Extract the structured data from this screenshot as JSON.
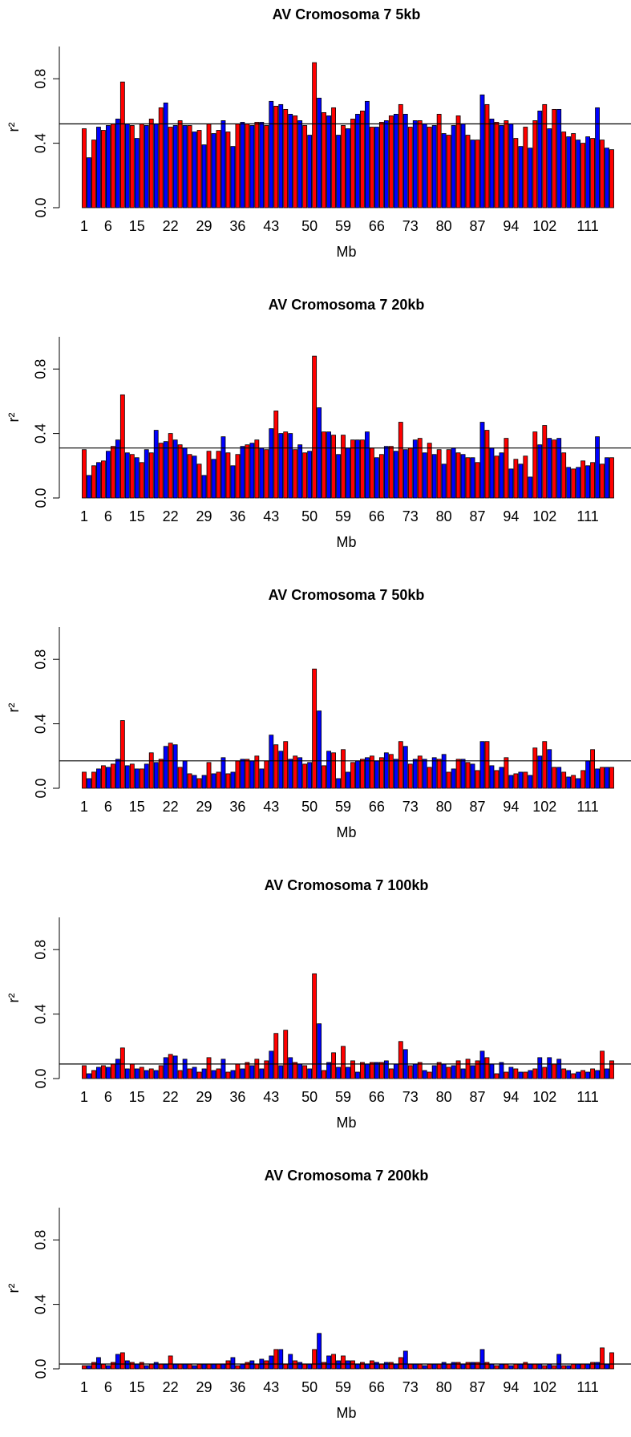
{
  "chart_data": [
    {
      "type": "bar",
      "title": "AV Cromosoma 7 5kb",
      "x_label": "Mb",
      "y_label": "r²",
      "categories": [
        1,
        null,
        null,
        null,
        null,
        6,
        null,
        null,
        null,
        null,
        null,
        15,
        null,
        null,
        null,
        null,
        null,
        null,
        22,
        null,
        null,
        null,
        null,
        null,
        null,
        29,
        null,
        null,
        null,
        null,
        null,
        null,
        36,
        null,
        null,
        null,
        null,
        null,
        null,
        43,
        null,
        null,
        null,
        null,
        null,
        null,
        null,
        50,
        null,
        null,
        null,
        null,
        null,
        null,
        59,
        null,
        null,
        null,
        null,
        null,
        null,
        66,
        null,
        null,
        null,
        null,
        null,
        null,
        73,
        null,
        null,
        null,
        null,
        null,
        null,
        80,
        null,
        null,
        null,
        null,
        null,
        null,
        87,
        null,
        null,
        null,
        null,
        null,
        null,
        94,
        null,
        null,
        null,
        null,
        null,
        null,
        102,
        null,
        null,
        null,
        null,
        null,
        null,
        null,
        null,
        111,
        null,
        null,
        null,
        null,
        null
      ],
      "values": [
        0.49,
        0.31,
        0.42,
        0.5,
        0.48,
        0.51,
        0.52,
        0.55,
        0.78,
        0.52,
        0.51,
        0.43,
        0.52,
        0.51,
        0.55,
        0.52,
        0.62,
        0.65,
        0.5,
        0.51,
        0.54,
        0.51,
        0.51,
        0.47,
        0.48,
        0.39,
        0.52,
        0.46,
        0.48,
        0.54,
        0.47,
        0.38,
        0.52,
        0.53,
        0.52,
        0.51,
        0.53,
        0.53,
        0.51,
        0.66,
        0.63,
        0.64,
        0.61,
        0.58,
        0.57,
        0.54,
        0.51,
        0.45,
        0.9,
        0.68,
        0.59,
        0.57,
        0.62,
        0.45,
        0.51,
        0.49,
        0.55,
        0.58,
        0.6,
        0.66,
        0.5,
        0.5,
        0.53,
        0.54,
        0.57,
        0.58,
        0.64,
        0.58,
        0.5,
        0.54,
        0.54,
        0.52,
        0.5,
        0.51,
        0.58,
        0.46,
        0.45,
        0.51,
        0.57,
        0.52,
        0.45,
        0.42,
        0.42,
        0.7,
        0.64,
        0.55,
        0.53,
        0.51,
        0.54,
        0.52,
        0.43,
        0.38,
        0.5,
        0.37,
        0.54,
        0.6,
        0.64,
        0.49,
        0.61,
        0.61,
        0.47,
        0.44,
        0.46,
        0.42,
        0.4,
        0.44,
        0.43,
        0.62,
        0.42,
        0.37,
        0.36
      ],
      "bar_colors": [
        "#ff0000",
        "#0000ff"
      ],
      "hline": 0.52,
      "ylim": [
        0,
        1
      ],
      "yticks": [
        {
          "value": 0,
          "label": "0.0"
        },
        0.4,
        0.8
      ]
    },
    {
      "type": "bar",
      "title": "AV Cromosoma 7 20kb",
      "x_label": "Mb",
      "y_label": "r²",
      "categories": [
        1,
        null,
        null,
        null,
        null,
        6,
        null,
        null,
        null,
        null,
        null,
        15,
        null,
        null,
        null,
        null,
        null,
        null,
        22,
        null,
        null,
        null,
        null,
        null,
        null,
        29,
        null,
        null,
        null,
        null,
        null,
        null,
        36,
        null,
        null,
        null,
        null,
        null,
        null,
        43,
        null,
        null,
        null,
        null,
        null,
        null,
        null,
        50,
        null,
        null,
        null,
        null,
        null,
        null,
        59,
        null,
        null,
        null,
        null,
        null,
        null,
        66,
        null,
        null,
        null,
        null,
        null,
        null,
        73,
        null,
        null,
        null,
        null,
        null,
        null,
        80,
        null,
        null,
        null,
        null,
        null,
        null,
        87,
        null,
        null,
        null,
        null,
        null,
        null,
        94,
        null,
        null,
        null,
        null,
        null,
        null,
        102,
        null,
        null,
        null,
        null,
        null,
        null,
        null,
        null,
        111,
        null,
        null,
        null,
        null,
        null
      ],
      "values": [
        0.3,
        0.14,
        0.2,
        0.22,
        0.23,
        0.29,
        0.32,
        0.36,
        0.64,
        0.28,
        0.27,
        0.25,
        0.22,
        0.3,
        0.28,
        0.42,
        0.34,
        0.35,
        0.4,
        0.36,
        0.33,
        0.31,
        0.27,
        0.26,
        0.21,
        0.14,
        0.29,
        0.24,
        0.29,
        0.38,
        0.28,
        0.2,
        0.27,
        0.32,
        0.33,
        0.34,
        0.36,
        0.31,
        0.3,
        0.43,
        0.54,
        0.4,
        0.41,
        0.4,
        0.3,
        0.33,
        0.28,
        0.29,
        0.88,
        0.56,
        0.41,
        0.41,
        0.39,
        0.27,
        0.39,
        0.31,
        0.36,
        0.36,
        0.36,
        0.41,
        0.31,
        0.25,
        0.27,
        0.32,
        0.32,
        0.29,
        0.47,
        0.3,
        0.31,
        0.36,
        0.37,
        0.28,
        0.34,
        0.27,
        0.3,
        0.21,
        0.3,
        0.31,
        0.28,
        0.27,
        0.25,
        0.25,
        0.22,
        0.47,
        0.42,
        0.31,
        0.26,
        0.28,
        0.37,
        0.18,
        0.24,
        0.21,
        0.26,
        0.13,
        0.41,
        0.33,
        0.45,
        0.37,
        0.36,
        0.37,
        0.28,
        0.19,
        0.18,
        0.19,
        0.23,
        0.2,
        0.22,
        0.38,
        0.21,
        0.25,
        0.25
      ],
      "bar_colors": [
        "#ff0000",
        "#0000ff"
      ],
      "hline": 0.31,
      "ylim": [
        0,
        1
      ],
      "yticks": [
        {
          "value": 0,
          "label": "0.0"
        },
        0.4,
        0.8
      ]
    },
    {
      "type": "bar",
      "title": "AV Cromosoma 7 50kb",
      "x_label": "Mb",
      "y_label": "r²",
      "categories": [
        1,
        null,
        null,
        null,
        null,
        6,
        null,
        null,
        null,
        null,
        null,
        15,
        null,
        null,
        null,
        null,
        null,
        null,
        22,
        null,
        null,
        null,
        null,
        null,
        null,
        29,
        null,
        null,
        null,
        null,
        null,
        null,
        36,
        null,
        null,
        null,
        null,
        null,
        null,
        43,
        null,
        null,
        null,
        null,
        null,
        null,
        null,
        50,
        null,
        null,
        null,
        null,
        null,
        null,
        59,
        null,
        null,
        null,
        null,
        null,
        null,
        66,
        null,
        null,
        null,
        null,
        null,
        null,
        73,
        null,
        null,
        null,
        null,
        null,
        null,
        80,
        null,
        null,
        null,
        null,
        null,
        null,
        87,
        null,
        null,
        null,
        null,
        null,
        null,
        94,
        null,
        null,
        null,
        null,
        null,
        null,
        102,
        null,
        null,
        null,
        null,
        null,
        null,
        null,
        null,
        111,
        null,
        null,
        null,
        null,
        null
      ],
      "values": [
        0.1,
        0.06,
        0.1,
        0.12,
        0.14,
        0.13,
        0.15,
        0.18,
        0.42,
        0.14,
        0.15,
        0.12,
        0.12,
        0.15,
        0.22,
        0.16,
        0.18,
        0.26,
        0.28,
        0.27,
        0.13,
        0.17,
        0.09,
        0.08,
        0.06,
        0.08,
        0.16,
        0.09,
        0.1,
        0.19,
        0.09,
        0.1,
        0.17,
        0.18,
        0.18,
        0.17,
        0.2,
        0.12,
        0.17,
        0.33,
        0.27,
        0.23,
        0.29,
        0.18,
        0.2,
        0.19,
        0.15,
        0.16,
        0.74,
        0.48,
        0.14,
        0.23,
        0.22,
        0.06,
        0.24,
        0.1,
        0.16,
        0.17,
        0.18,
        0.19,
        0.2,
        0.17,
        0.19,
        0.22,
        0.21,
        0.18,
        0.29,
        0.26,
        0.15,
        0.18,
        0.2,
        0.18,
        0.13,
        0.19,
        0.18,
        0.21,
        0.1,
        0.12,
        0.18,
        0.18,
        0.16,
        0.15,
        0.11,
        0.29,
        0.29,
        0.14,
        0.11,
        0.13,
        0.19,
        0.08,
        0.09,
        0.1,
        0.1,
        0.08,
        0.25,
        0.2,
        0.29,
        0.24,
        0.13,
        0.13,
        0.1,
        0.07,
        0.08,
        0.06,
        0.11,
        0.17,
        0.24,
        0.12,
        0.13,
        0.13,
        0.13
      ],
      "bar_colors": [
        "#ff0000",
        "#0000ff"
      ],
      "hline": 0.17,
      "ylim": [
        0,
        1
      ],
      "yticks": [
        {
          "value": 0,
          "label": "0.0"
        },
        0.4,
        0.8
      ]
    },
    {
      "type": "bar",
      "title": "AV Cromosoma 7 100kb",
      "x_label": "Mb",
      "y_label": "r²",
      "categories": [
        1,
        null,
        null,
        null,
        null,
        6,
        null,
        null,
        null,
        null,
        null,
        15,
        null,
        null,
        null,
        null,
        null,
        null,
        22,
        null,
        null,
        null,
        null,
        null,
        null,
        29,
        null,
        null,
        null,
        null,
        null,
        null,
        36,
        null,
        null,
        null,
        null,
        null,
        null,
        43,
        null,
        null,
        null,
        null,
        null,
        null,
        null,
        50,
        null,
        null,
        null,
        null,
        null,
        null,
        59,
        null,
        null,
        null,
        null,
        null,
        null,
        66,
        null,
        null,
        null,
        null,
        null,
        null,
        73,
        null,
        null,
        null,
        null,
        null,
        null,
        80,
        null,
        null,
        null,
        null,
        null,
        null,
        87,
        null,
        null,
        null,
        null,
        null,
        null,
        94,
        null,
        null,
        null,
        null,
        null,
        null,
        102,
        null,
        null,
        null,
        null,
        null,
        null,
        null,
        null,
        111,
        null,
        null,
        null,
        null,
        null
      ],
      "values": [
        0.08,
        0.03,
        0.05,
        0.07,
        0.08,
        0.07,
        0.09,
        0.12,
        0.19,
        0.06,
        0.09,
        0.06,
        0.07,
        0.05,
        0.06,
        0.05,
        0.08,
        0.13,
        0.15,
        0.14,
        0.05,
        0.12,
        0.06,
        0.07,
        0.04,
        0.06,
        0.13,
        0.05,
        0.06,
        0.12,
        0.04,
        0.05,
        0.09,
        0.06,
        0.1,
        0.08,
        0.12,
        0.06,
        0.11,
        0.17,
        0.28,
        0.08,
        0.3,
        0.13,
        0.1,
        0.09,
        0.08,
        0.06,
        0.65,
        0.34,
        0.05,
        0.1,
        0.16,
        0.07,
        0.2,
        0.07,
        0.11,
        0.04,
        0.1,
        0.09,
        0.1,
        0.1,
        0.1,
        0.11,
        0.06,
        0.09,
        0.23,
        0.18,
        0.08,
        0.09,
        0.1,
        0.05,
        0.04,
        0.08,
        0.1,
        0.09,
        0.07,
        0.08,
        0.11,
        0.06,
        0.12,
        0.08,
        0.11,
        0.17,
        0.13,
        0.09,
        0.03,
        0.1,
        0.04,
        0.07,
        0.06,
        0.04,
        0.04,
        0.05,
        0.06,
        0.13,
        0.07,
        0.13,
        0.09,
        0.12,
        0.06,
        0.05,
        0.03,
        0.04,
        0.05,
        0.04,
        0.06,
        0.05,
        0.17,
        0.06,
        0.11
      ],
      "bar_colors": [
        "#ff0000",
        "#0000ff"
      ],
      "hline": 0.09,
      "ylim": [
        0,
        1
      ],
      "yticks": [
        {
          "value": 0,
          "label": "0.0"
        },
        0.4,
        0.8
      ]
    },
    {
      "type": "bar",
      "title": "AV Cromosoma 7 200kb",
      "x_label": "Mb",
      "y_label": "r²",
      "categories": [
        1,
        null,
        null,
        null,
        null,
        6,
        null,
        null,
        null,
        null,
        null,
        15,
        null,
        null,
        null,
        null,
        null,
        null,
        22,
        null,
        null,
        null,
        null,
        null,
        null,
        29,
        null,
        null,
        null,
        null,
        null,
        null,
        36,
        null,
        null,
        null,
        null,
        null,
        null,
        43,
        null,
        null,
        null,
        null,
        null,
        null,
        null,
        50,
        null,
        null,
        null,
        null,
        null,
        null,
        59,
        null,
        null,
        null,
        null,
        null,
        null,
        66,
        null,
        null,
        null,
        null,
        null,
        null,
        73,
        null,
        null,
        null,
        null,
        null,
        null,
        80,
        null,
        null,
        null,
        null,
        null,
        null,
        87,
        null,
        null,
        null,
        null,
        null,
        null,
        94,
        null,
        null,
        null,
        null,
        null,
        null,
        102,
        null,
        null,
        null,
        null,
        null,
        null,
        null,
        null,
        111,
        null,
        null,
        null,
        null,
        null
      ],
      "values": [
        0.02,
        0.02,
        0.04,
        0.07,
        0.03,
        0.02,
        0.04,
        0.09,
        0.1,
        0.05,
        0.04,
        0.03,
        0.04,
        0.02,
        0.03,
        0.04,
        0.03,
        0.03,
        0.08,
        0.03,
        0.03,
        0.03,
        0.03,
        0.02,
        0.03,
        0.03,
        0.03,
        0.03,
        0.03,
        0.03,
        0.05,
        0.07,
        0.02,
        0.03,
        0.04,
        0.05,
        0.03,
        0.06,
        0.05,
        0.08,
        0.12,
        0.12,
        0.03,
        0.09,
        0.05,
        0.04,
        0.03,
        0.03,
        0.12,
        0.22,
        0.04,
        0.08,
        0.09,
        0.05,
        0.08,
        0.05,
        0.05,
        0.03,
        0.04,
        0.03,
        0.05,
        0.04,
        0.03,
        0.04,
        0.04,
        0.03,
        0.07,
        0.11,
        0.03,
        0.03,
        0.03,
        0.02,
        0.03,
        0.03,
        0.03,
        0.04,
        0.03,
        0.04,
        0.04,
        0.03,
        0.04,
        0.04,
        0.04,
        0.12,
        0.04,
        0.03,
        0.02,
        0.03,
        0.03,
        0.02,
        0.03,
        0.03,
        0.04,
        0.03,
        0.03,
        0.03,
        0.02,
        0.03,
        0.02,
        0.09,
        0.02,
        0.02,
        0.03,
        0.03,
        0.03,
        0.03,
        0.04,
        0.04,
        0.13,
        0.03,
        0.1
      ],
      "bar_colors": [
        "#ff0000",
        "#0000ff"
      ],
      "hline": 0.03,
      "ylim": [
        0,
        1
      ],
      "yticks": [
        {
          "value": 0,
          "label": "0.0"
        },
        0.4,
        0.8
      ]
    }
  ]
}
